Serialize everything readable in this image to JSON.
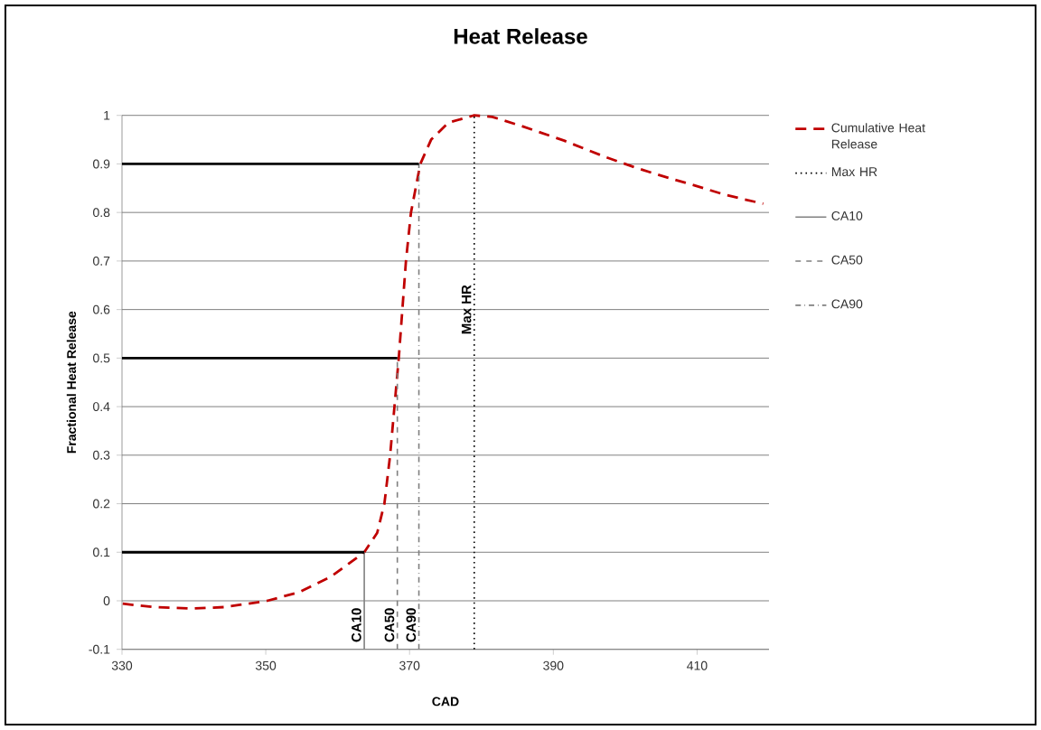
{
  "chart_data": {
    "type": "line",
    "title": "Heat Release",
    "xlabel": "CAD",
    "ylabel": "Fractional Heat Release",
    "xlim": [
      330,
      420
    ],
    "xticks": [
      330,
      350,
      370,
      390,
      410
    ],
    "ylim": [
      -0.1,
      1
    ],
    "yticks": [
      -0.1,
      0,
      0.1,
      0.2,
      0.3,
      0.4,
      0.5,
      0.6,
      0.7,
      0.8,
      0.9,
      1
    ],
    "grid": "y",
    "legend": "right",
    "marker": "none",
    "series": [
      {
        "name": "Cumulative Heat Release",
        "color": "#c00000",
        "line_style": "dashed",
        "x": [
          330.1,
          334.4,
          339.8,
          344.3,
          350.2,
          354.7,
          359.1,
          363.7,
          365.5,
          366.5,
          367.3,
          367.9,
          368.5,
          369.0,
          369.5,
          370.2,
          371.5,
          373.0,
          375.4,
          379.0,
          381.5,
          385.6,
          391.5,
          397.3,
          401.5,
          405.6,
          409.8,
          414.0,
          419.2
        ],
        "values": [
          -0.006,
          -0.013,
          -0.016,
          -0.013,
          0.0,
          0.018,
          0.05,
          0.1,
          0.14,
          0.2,
          0.3,
          0.4,
          0.5,
          0.6,
          0.7,
          0.8,
          0.9,
          0.95,
          0.985,
          1.0,
          0.997,
          0.978,
          0.948,
          0.914,
          0.892,
          0.873,
          0.855,
          0.836,
          0.818
        ]
      },
      {
        "name": "Max HR",
        "color": "#000000",
        "line_style": "dotted",
        "x": [
          379,
          379
        ],
        "values": [
          -0.1,
          1
        ]
      },
      {
        "name": "CA10",
        "color": "#808080",
        "line_style": "solid",
        "x": [
          363.7,
          363.7
        ],
        "values": [
          -0.1,
          0.1
        ]
      },
      {
        "name": "CA50",
        "color": "#808080",
        "line_style": "dashed",
        "x": [
          368.3,
          368.3
        ],
        "values": [
          -0.1,
          0.5
        ]
      },
      {
        "name": "CA90",
        "color": "#808080",
        "line_style": "dashdot",
        "x": [
          371.3,
          371.3
        ],
        "values": [
          -0.1,
          0.9
        ]
      },
      {
        "color": "#000000",
        "line_style": "solid",
        "x": [
          330,
          363.7
        ],
        "values": [
          0.1,
          0.1
        ]
      },
      {
        "color": "#000000",
        "line_style": "solid",
        "x": [
          330,
          368.3
        ],
        "values": [
          0.5,
          0.5
        ]
      },
      {
        "color": "#000000",
        "line_style": "solid",
        "x": [
          330,
          371.3
        ],
        "values": [
          0.9,
          0.9
        ]
      }
    ],
    "annotations": [
      {
        "text": "CA10",
        "x": 363.7,
        "y": -0.05
      },
      {
        "text": "CA50",
        "x": 368.3,
        "y": -0.05
      },
      {
        "text": "CA90",
        "x": 371.3,
        "y": -0.05
      },
      {
        "text": "Max HR",
        "x": 379,
        "y": 0.6
      }
    ]
  }
}
